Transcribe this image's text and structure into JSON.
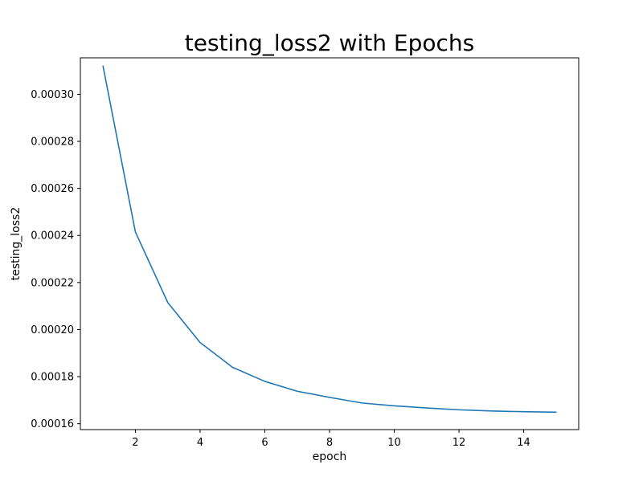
{
  "chart_data": {
    "type": "line",
    "title": "testing_loss2 with Epochs",
    "xlabel": "epoch",
    "ylabel": "testing_loss2",
    "x": [
      1,
      2,
      3,
      4,
      5,
      6,
      7,
      8,
      9,
      10,
      11,
      12,
      13,
      14,
      15
    ],
    "series": [
      {
        "values": [
          0.000312,
          0.0002415,
          0.0002115,
          0.0001945,
          0.000184,
          0.000178,
          0.0001738,
          0.0001712,
          0.0001688,
          0.0001676,
          0.0001667,
          0.0001659,
          0.0001654,
          0.0001651,
          0.0001649
        ],
        "color": "#1f77b4"
      }
    ],
    "xlim": [
      0.3,
      15.7
    ],
    "ylim": [
      0.0001575,
      0.0003155
    ],
    "xticks": [
      2,
      4,
      6,
      8,
      10,
      12,
      14
    ],
    "xtick_labels": [
      "2",
      "4",
      "6",
      "8",
      "10",
      "12",
      "14"
    ],
    "yticks": [
      0.00016,
      0.00018,
      0.0002,
      0.00022,
      0.00024,
      0.00026,
      0.00028,
      0.0003
    ],
    "ytick_labels": [
      "0.00016",
      "0.00018",
      "0.00020",
      "0.00022",
      "0.00024",
      "0.00026",
      "0.00028",
      "0.00030"
    ],
    "grid": false,
    "legend": false
  }
}
